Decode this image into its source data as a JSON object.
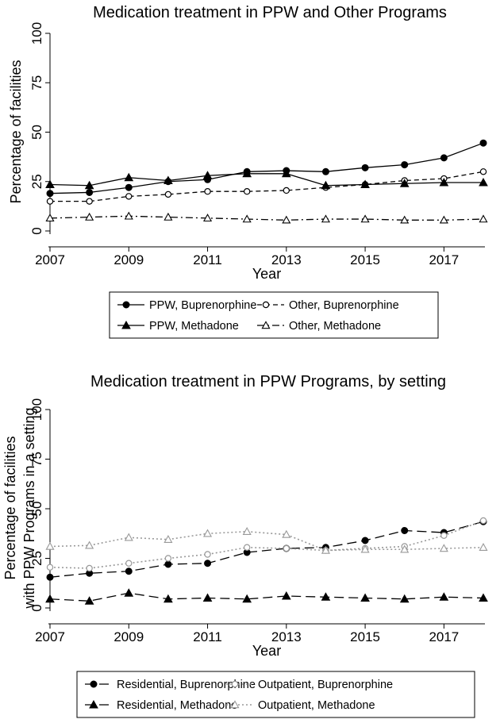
{
  "chart_data": [
    {
      "type": "line",
      "title": "Medication treatment in PPW and Other Programs",
      "xlabel": "Year",
      "ylabel_lines": [
        "Percentage of facilities"
      ],
      "xlim": [
        2007,
        2018
      ],
      "ylim": [
        0,
        100
      ],
      "xticks": [
        2007,
        2009,
        2011,
        2013,
        2015,
        2017
      ],
      "yticks": [
        0,
        25,
        50,
        75,
        100
      ],
      "x": [
        2007,
        2008,
        2009,
        2010,
        2011,
        2012,
        2013,
        2014,
        2015,
        2016,
        2017,
        2018
      ],
      "series": [
        {
          "name": "PPW, Buprenorphine",
          "marker": "circle-filled",
          "dash": "solid",
          "color": "#000000",
          "values": [
            19,
            19.5,
            22,
            25,
            26,
            30,
            30.5,
            30,
            32,
            33.5,
            37,
            44.5
          ]
        },
        {
          "name": "Other, Buprenorphine",
          "marker": "circle-open",
          "dash": "dash",
          "color": "#000000",
          "values": [
            15,
            15,
            17.5,
            18.5,
            20,
            20,
            20.5,
            22,
            23.5,
            25.5,
            26.5,
            30
          ]
        },
        {
          "name": "PPW, Methadone",
          "marker": "triangle-filled",
          "dash": "solid",
          "color": "#000000",
          "values": [
            23.5,
            23,
            27,
            25.5,
            28,
            29,
            29,
            23,
            23.5,
            24,
            24.5,
            24.5
          ]
        },
        {
          "name": "Other, Methadone",
          "marker": "triangle-open",
          "dash": "dashdot",
          "color": "#000000",
          "values": [
            6.5,
            7,
            7.5,
            7,
            6.5,
            6,
            5.5,
            6,
            6,
            5.5,
            5.5,
            6
          ]
        }
      ],
      "legend": [
        "PPW, Buprenorphine",
        "Other, Buprenorphine",
        "PPW, Methadone",
        "Other, Methadone"
      ]
    },
    {
      "type": "line",
      "title": "Medication treatment in PPW Programs, by setting",
      "xlabel": "Year",
      "ylabel_lines": [
        "Percentage of facilities",
        "with PPW Programs in a setting"
      ],
      "xlim": [
        2007,
        2018
      ],
      "ylim": [
        0,
        100
      ],
      "xticks": [
        2007,
        2009,
        2011,
        2013,
        2015,
        2017
      ],
      "yticks": [
        0,
        25,
        50,
        75,
        100
      ],
      "x": [
        2007,
        2008,
        2009,
        2010,
        2011,
        2012,
        2013,
        2014,
        2015,
        2016,
        2017,
        2018
      ],
      "series": [
        {
          "name": "Residential, Buprenorphine",
          "marker": "circle-filled",
          "dash": "longdash",
          "color": "#000000",
          "values": [
            15.5,
            17.5,
            18.5,
            22,
            22.5,
            28,
            30,
            30.5,
            34,
            39,
            38,
            43.5
          ]
        },
        {
          "name": "Outpatient, Buprenorphine",
          "marker": "circle-open",
          "dash": "dot",
          "color": "#999999",
          "values": [
            20.5,
            20,
            22.5,
            25,
            27,
            30.5,
            30,
            29,
            30,
            31,
            36.5,
            44
          ]
        },
        {
          "name": "Residential, Methadone",
          "marker": "triangle-filled",
          "dash": "longdash",
          "color": "#000000",
          "values": [
            4.5,
            3.5,
            7.5,
            4.5,
            5,
            4.5,
            6,
            5.5,
            5,
            4.5,
            5.5,
            5
          ]
        },
        {
          "name": "Outpatient, Methadone",
          "marker": "triangle-open",
          "dash": "dot",
          "color": "#999999",
          "values": [
            31,
            31.5,
            35.5,
            34.5,
            37.5,
            38.5,
            37,
            29,
            29.5,
            29.5,
            30,
            30.5
          ]
        }
      ],
      "legend": [
        "Residential, Buprenorphine",
        "Outpatient, Buprenorphine",
        "Residential, Methadone",
        "Outpatient, Methadone"
      ]
    }
  ]
}
